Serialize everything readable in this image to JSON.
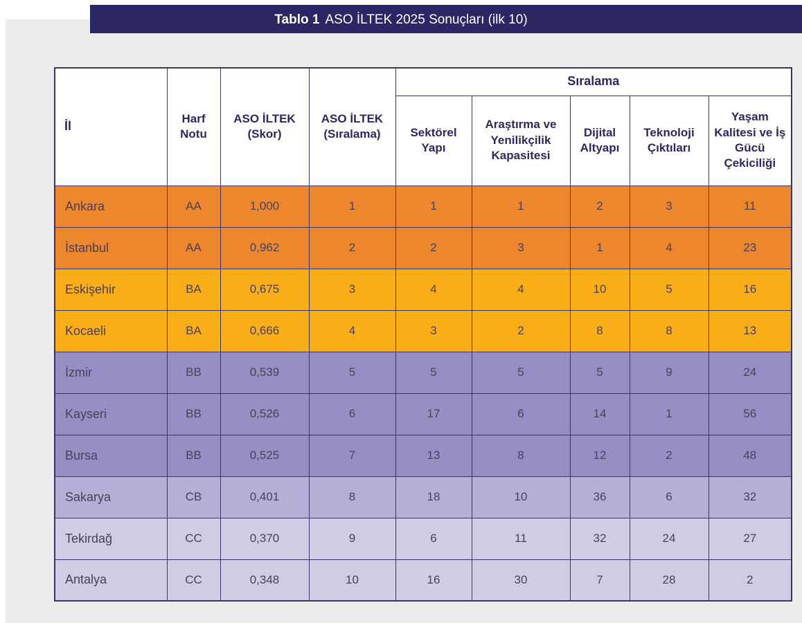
{
  "title": {
    "label": "Tablo 1",
    "text": "ASO İLTEK 2025 Sonuçları (ilk 10)"
  },
  "table": {
    "col_headers": [
      "İl",
      "Harf Notu",
      "ASO İLTEK (Skor)",
      "ASO İLTEK (Sıralama)"
    ],
    "group_header": "Sıralama",
    "sub_headers": [
      "Sektörel Yapı",
      "Araştırma ve Yenilikçilik Kapasitesi",
      "Dijital Altyapı",
      "Teknoloji Çıktıları",
      "Yaşam Kalitesi ve İş Gücü Çekiciliği"
    ],
    "row_tiers": [
      "AA",
      "AA",
      "BA",
      "BA",
      "BB",
      "BB",
      "BB",
      "CB",
      "CC",
      "CC"
    ]
  },
  "tier_colors": {
    "AA": "#ec872e",
    "BA": "#f9ad17",
    "BB": "#968fc4",
    "CB": "#b5afd8",
    "CC": "#d0cce6"
  },
  "colors": {
    "title_bg": "#2b2664",
    "page_bg": "#edecea",
    "border": "#3b3566",
    "header_text": "#2d2861",
    "body_text": "#4b4059",
    "title_text": "#ffffff"
  },
  "chart_data": {
    "type": "table",
    "title": "Tablo 1 ASO İLTEK 2025 Sonuçları (ilk 10)",
    "columns": [
      "İl",
      "Harf Notu",
      "ASO İLTEK (Skor)",
      "ASO İLTEK (Sıralama)",
      "Sıralama - Sektörel Yapı",
      "Sıralama - Araştırma ve Yenilikçilik Kapasitesi",
      "Sıralama - Dijital Altyapı",
      "Sıralama - Teknoloji Çıktıları",
      "Sıralama - Yaşam Kalitesi ve İş Gücü Çekiciliği"
    ],
    "rows": [
      [
        "Ankara",
        "AA",
        "1,000",
        "1",
        "1",
        "1",
        "2",
        "3",
        "11"
      ],
      [
        "İstanbul",
        "AA",
        "0,962",
        "2",
        "2",
        "3",
        "1",
        "4",
        "23"
      ],
      [
        "Eskişehir",
        "BA",
        "0,675",
        "3",
        "4",
        "4",
        "10",
        "5",
        "16"
      ],
      [
        "Kocaeli",
        "BA",
        "0,666",
        "4",
        "3",
        "2",
        "8",
        "8",
        "13"
      ],
      [
        "İzmir",
        "BB",
        "0,539",
        "5",
        "5",
        "5",
        "5",
        "9",
        "24"
      ],
      [
        "Kayseri",
        "BB",
        "0,526",
        "6",
        "17",
        "6",
        "14",
        "1",
        "56"
      ],
      [
        "Bursa",
        "BB",
        "0,525",
        "7",
        "13",
        "8",
        "12",
        "2",
        "48"
      ],
      [
        "Sakarya",
        "CB",
        "0,401",
        "8",
        "18",
        "10",
        "36",
        "6",
        "32"
      ],
      [
        "Tekirdağ",
        "CC",
        "0,370",
        "9",
        "6",
        "11",
        "32",
        "24",
        "27"
      ],
      [
        "Antalya",
        "CC",
        "0,348",
        "10",
        "16",
        "30",
        "7",
        "28",
        "2"
      ]
    ]
  }
}
